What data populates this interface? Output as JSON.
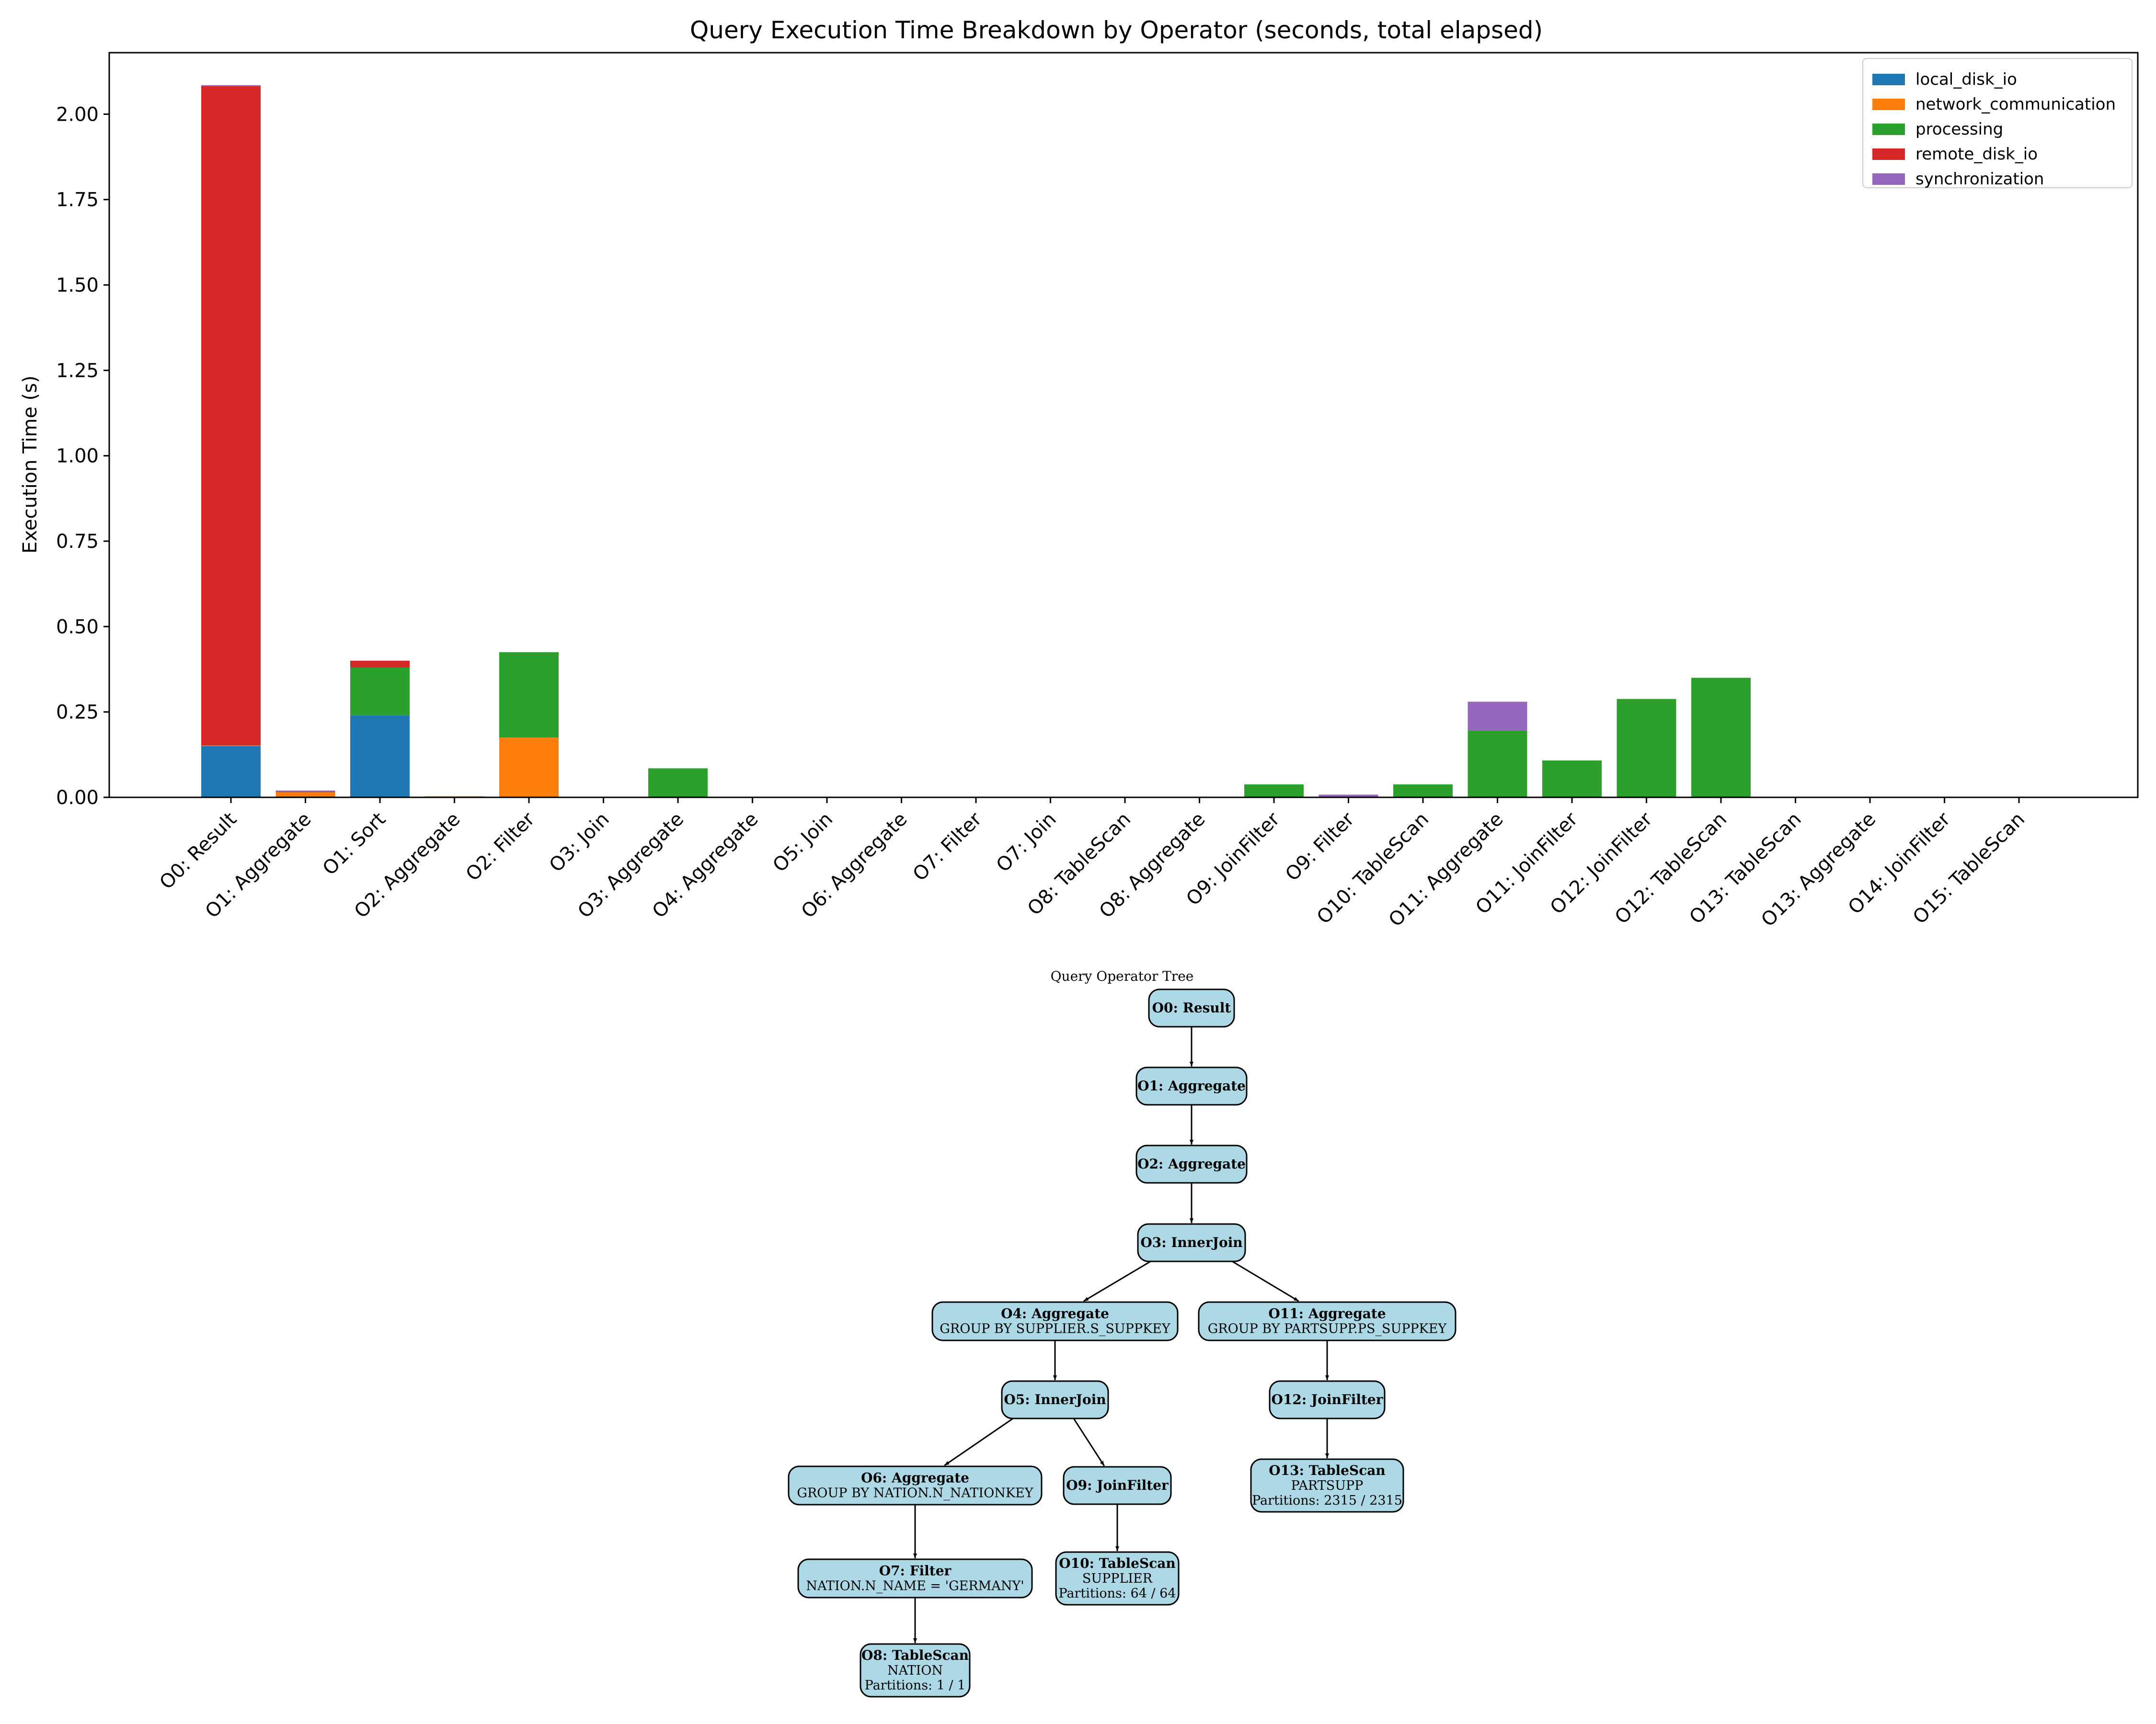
{
  "chart_data": {
    "type": "bar",
    "stacked": true,
    "title": "Query Execution Time Breakdown by Operator (seconds, total elapsed)",
    "xlabel": "",
    "ylabel": "Execution Time (s)",
    "ylim": [
      0,
      2.18
    ],
    "yticks": [
      "0.00",
      "0.25",
      "0.50",
      "0.75",
      "1.00",
      "1.25",
      "1.50",
      "1.75",
      "2.00"
    ],
    "legend_position": "upper right",
    "categories": [
      "O0: Result",
      "O1: Aggregate",
      "O1: Sort",
      "O2: Aggregate",
      "O2: Filter",
      "O3: Join",
      "O3: Aggregate",
      "O4: Aggregate",
      "O5: Join",
      "O6: Aggregate",
      "O7: Filter",
      "O7: Join",
      "O8: TableScan",
      "O8: Aggregate",
      "O9: JoinFilter",
      "O9: Filter",
      "O10: TableScan",
      "O11: Aggregate",
      "O11: JoinFilter",
      "O12: JoinFilter",
      "O12: TableScan",
      "O13: TableScan",
      "O13: Aggregate",
      "O14: JoinFilter",
      "O15: TableScan"
    ],
    "series": [
      {
        "name": "local_disk_io",
        "color": "#1f77b4",
        "values": [
          0.15,
          0.003,
          0.24,
          0.002,
          0,
          0,
          0,
          0,
          0,
          0,
          0,
          0,
          0,
          0,
          0,
          0,
          0,
          0,
          0,
          0,
          0,
          0,
          0,
          0,
          0
        ]
      },
      {
        "name": "network_communication",
        "color": "#ff7f0e",
        "values": [
          0.002,
          0.012,
          0,
          0.001,
          0.175,
          0,
          0,
          0,
          0,
          0,
          0,
          0,
          0,
          0,
          0,
          0,
          0,
          0,
          0,
          0,
          0,
          0,
          0,
          0,
          0
        ]
      },
      {
        "name": "processing",
        "color": "#2ca02c",
        "values": [
          0,
          0,
          0.14,
          0,
          0.25,
          0.001,
          0.085,
          0,
          0,
          0,
          0,
          0,
          0,
          0,
          0.038,
          0.002,
          0.038,
          0.195,
          0.108,
          0.288,
          0.35,
          0,
          0,
          0,
          0
        ]
      },
      {
        "name": "remote_disk_io",
        "color": "#d62728",
        "values": [
          1.93,
          0.002,
          0.02,
          0,
          0,
          0,
          0,
          0,
          0,
          0,
          0,
          0,
          0,
          0,
          0,
          0,
          0,
          0,
          0,
          0,
          0,
          0,
          0,
          0,
          0
        ]
      },
      {
        "name": "synchronization",
        "color": "#9467bd",
        "values": [
          0.003,
          0.003,
          0,
          0,
          0,
          0,
          0,
          0,
          0,
          0,
          0,
          0,
          0,
          0,
          0,
          0.006,
          0,
          0.085,
          0,
          0,
          0,
          0,
          0,
          0,
          0
        ]
      }
    ]
  },
  "tree": {
    "title": "Query Operator Tree",
    "nodes": [
      {
        "id": "O0",
        "title": "O0: Result",
        "lines": []
      },
      {
        "id": "O1",
        "title": "O1: Aggregate",
        "lines": []
      },
      {
        "id": "O2",
        "title": "O2: Aggregate",
        "lines": []
      },
      {
        "id": "O3",
        "title": "O3: InnerJoin",
        "lines": []
      },
      {
        "id": "O4",
        "title": "O4: Aggregate",
        "lines": [
          "GROUP BY SUPPLIER.S_SUPPKEY"
        ]
      },
      {
        "id": "O11",
        "title": "O11: Aggregate",
        "lines": [
          "GROUP BY PARTSUPP.PS_SUPPKEY"
        ]
      },
      {
        "id": "O5",
        "title": "O5: InnerJoin",
        "lines": []
      },
      {
        "id": "O12",
        "title": "O12: JoinFilter",
        "lines": []
      },
      {
        "id": "O6",
        "title": "O6: Aggregate",
        "lines": [
          "GROUP BY NATION.N_NATIONKEY"
        ]
      },
      {
        "id": "O9",
        "title": "O9: JoinFilter",
        "lines": []
      },
      {
        "id": "O13",
        "title": "O13: TableScan",
        "lines": [
          "PARTSUPP",
          "Partitions: 2315 / 2315"
        ]
      },
      {
        "id": "O7",
        "title": "O7: Filter",
        "lines": [
          "NATION.N_NAME = 'GERMANY'"
        ]
      },
      {
        "id": "O10",
        "title": "O10: TableScan",
        "lines": [
          "SUPPLIER",
          "Partitions: 64 / 64"
        ]
      },
      {
        "id": "O8",
        "title": "O8: TableScan",
        "lines": [
          "NATION",
          "Partitions: 1 / 1"
        ]
      }
    ],
    "edges": [
      [
        "O0",
        "O1"
      ],
      [
        "O1",
        "O2"
      ],
      [
        "O2",
        "O3"
      ],
      [
        "O3",
        "O4"
      ],
      [
        "O3",
        "O11"
      ],
      [
        "O4",
        "O5"
      ],
      [
        "O11",
        "O12"
      ],
      [
        "O5",
        "O6"
      ],
      [
        "O5",
        "O9"
      ],
      [
        "O12",
        "O13"
      ],
      [
        "O6",
        "O7"
      ],
      [
        "O9",
        "O10"
      ],
      [
        "O7",
        "O8"
      ]
    ]
  }
}
